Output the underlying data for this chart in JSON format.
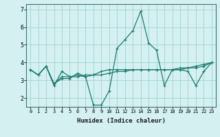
{
  "xlabel": "Humidex (Indice chaleur)",
  "xlim": [
    -0.5,
    23.5
  ],
  "ylim": [
    1.5,
    7.3
  ],
  "yticks": [
    2,
    3,
    4,
    5,
    6,
    7
  ],
  "xticks": [
    0,
    1,
    2,
    3,
    4,
    5,
    6,
    7,
    8,
    9,
    10,
    11,
    12,
    13,
    14,
    15,
    16,
    17,
    18,
    19,
    20,
    21,
    22,
    23
  ],
  "bg_color": "#d4f0f0",
  "grid_color": "#aad4d4",
  "line_color": "#1a7a6e",
  "lines": [
    [
      3.6,
      3.3,
      3.8,
      2.7,
      3.5,
      3.2,
      3.3,
      3.2,
      1.6,
      1.6,
      2.4,
      4.8,
      5.3,
      5.8,
      6.9,
      5.1,
      4.7,
      2.7,
      3.6,
      3.6,
      3.5,
      2.7,
      3.5,
      4.0
    ],
    [
      3.6,
      3.3,
      3.8,
      2.8,
      3.1,
      3.1,
      3.4,
      3.2,
      3.3,
      3.3,
      3.4,
      3.5,
      3.5,
      3.6,
      3.6,
      3.6,
      3.6,
      3.6,
      3.6,
      3.7,
      3.7,
      3.8,
      3.9,
      4.0
    ],
    [
      3.6,
      3.3,
      3.8,
      2.8,
      3.2,
      3.2,
      3.2,
      3.3,
      3.3,
      3.5,
      3.6,
      3.6,
      3.6,
      3.6,
      3.6,
      3.6,
      3.6,
      3.6,
      3.6,
      3.6,
      3.7,
      3.7,
      3.8,
      4.0
    ]
  ]
}
